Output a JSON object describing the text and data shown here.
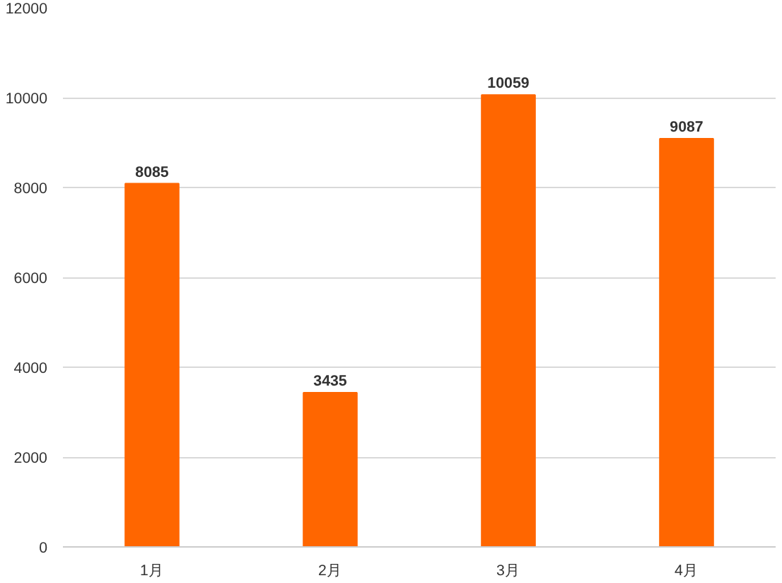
{
  "chart_data": {
    "type": "bar",
    "categories": [
      "1月",
      "2月",
      "3月",
      "4月"
    ],
    "values": [
      8085,
      3435,
      10059,
      9087
    ],
    "color": "#ff6600",
    "ylim": [
      0,
      12000
    ],
    "yticks": [
      0,
      2000,
      4000,
      6000,
      8000,
      10000,
      12000
    ],
    "grid": "y",
    "data_labels": true
  }
}
